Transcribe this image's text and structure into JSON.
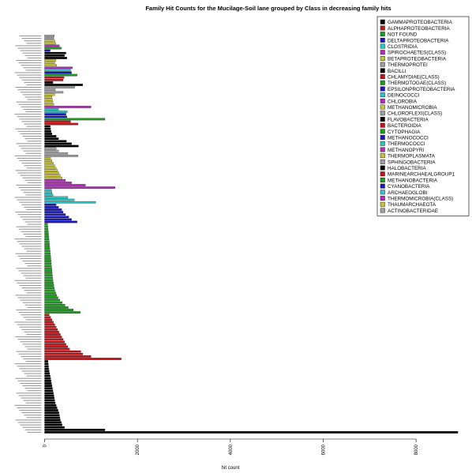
{
  "chart_data": {
    "type": "bar",
    "orientation": "horizontal",
    "title": "Family Hit Counts for the Mucilage-Soil lane grouped by Class in decreasing family hits",
    "xlabel": "hit count",
    "ylabel": "",
    "xlim": [
      0,
      9000
    ],
    "xticks": [
      0,
      2000,
      4000,
      6000,
      8000
    ],
    "legend_position": "top-right",
    "legend": [
      {
        "name": "GAMMAPROTEOBACTERIA",
        "color": "#000000"
      },
      {
        "name": "ALPHAPROTEOBACTERIA",
        "color": "#c0151b"
      },
      {
        "name": "NOT FOUND",
        "color": "#1e9a22"
      },
      {
        "name": "DELTAPROTEOBACTERIA",
        "color": "#1a18b8"
      },
      {
        "name": "CLOSTRIDIA",
        "color": "#2bc3c3"
      },
      {
        "name": "SPIROCHAETES(CLASS)",
        "color": "#b12fb8"
      },
      {
        "name": "BETAPROTEOBACTERIA",
        "color": "#c8c23b"
      },
      {
        "name": "THERMOPROTEI",
        "color": "#9e9e9e"
      },
      {
        "name": "BACILLI",
        "color": "#000000"
      },
      {
        "name": "CHLAMYDIAE(CLASS)",
        "color": "#c0151b"
      },
      {
        "name": "THERMOTOGAE(CLASS)",
        "color": "#1e9a22"
      },
      {
        "name": "EPSILONPROTEOBACTERIA",
        "color": "#1a18b8"
      },
      {
        "name": "DEINOCOCCI",
        "color": "#2bc3c3"
      },
      {
        "name": "CHLOROBIA",
        "color": "#b12fb8"
      },
      {
        "name": "METHANOMICROBIA",
        "color": "#c8c23b"
      },
      {
        "name": "CHLOROFLEXI(CLASS)",
        "color": "#9e9e9e"
      },
      {
        "name": "FLAVOBACTERIA",
        "color": "#000000"
      },
      {
        "name": "BACTEROIDIA",
        "color": "#c0151b"
      },
      {
        "name": "CYTOPHAGIA",
        "color": "#1e9a22"
      },
      {
        "name": "METHANOCOCCI",
        "color": "#1a18b8"
      },
      {
        "name": "THERMOCOCCI",
        "color": "#2bc3c3"
      },
      {
        "name": "METHANOPYRI",
        "color": "#b12fb8"
      },
      {
        "name": "THERMOPLASMATA",
        "color": "#c8c23b"
      },
      {
        "name": "SPHINGOBACTERIA",
        "color": "#9e9e9e"
      },
      {
        "name": "HALOBACTERIA",
        "color": "#000000"
      },
      {
        "name": "MARINEARCHAEALGROUP1",
        "color": "#c0151b"
      },
      {
        "name": "METHANOBACTERIA",
        "color": "#1e9a22"
      },
      {
        "name": "CYANOBACTERIA",
        "color": "#1a18b8"
      },
      {
        "name": "ARCHAEOGLOBI",
        "color": "#2bc3c3"
      },
      {
        "name": "THERMOMICROBIA(CLASS)",
        "color": "#b12fb8"
      },
      {
        "name": "THAUMARCHAEOTA",
        "color": "#c8c23b"
      },
      {
        "name": "ACTINOBACTERIDAE",
        "color": "#9e9e9e"
      }
    ],
    "bars": [
      {
        "value": 8900,
        "color": "#000000"
      },
      {
        "value": 1300,
        "color": "#000000"
      },
      {
        "value": 430,
        "color": "#000000"
      },
      {
        "value": 380,
        "color": "#000000"
      },
      {
        "value": 360,
        "color": "#000000"
      },
      {
        "value": 340,
        "color": "#000000"
      },
      {
        "value": 330,
        "color": "#000000"
      },
      {
        "value": 320,
        "color": "#000000"
      },
      {
        "value": 310,
        "color": "#000000"
      },
      {
        "value": 290,
        "color": "#000000"
      },
      {
        "value": 270,
        "color": "#000000"
      },
      {
        "value": 250,
        "color": "#000000"
      },
      {
        "value": 230,
        "color": "#000000"
      },
      {
        "value": 220,
        "color": "#000000"
      },
      {
        "value": 210,
        "color": "#000000"
      },
      {
        "value": 200,
        "color": "#000000"
      },
      {
        "value": 190,
        "color": "#000000"
      },
      {
        "value": 180,
        "color": "#000000"
      },
      {
        "value": 170,
        "color": "#000000"
      },
      {
        "value": 160,
        "color": "#000000"
      },
      {
        "value": 150,
        "color": "#000000"
      },
      {
        "value": 140,
        "color": "#000000"
      },
      {
        "value": 130,
        "color": "#000000"
      },
      {
        "value": 120,
        "color": "#000000"
      },
      {
        "value": 110,
        "color": "#000000"
      },
      {
        "value": 100,
        "color": "#000000"
      },
      {
        "value": 90,
        "color": "#000000"
      },
      {
        "value": 85,
        "color": "#000000"
      },
      {
        "value": 80,
        "color": "#000000"
      },
      {
        "value": 75,
        "color": "#000000"
      },
      {
        "value": 1650,
        "color": "#c0151b"
      },
      {
        "value": 1000,
        "color": "#c0151b"
      },
      {
        "value": 820,
        "color": "#c0151b"
      },
      {
        "value": 780,
        "color": "#c0151b"
      },
      {
        "value": 540,
        "color": "#c0151b"
      },
      {
        "value": 500,
        "color": "#c0151b"
      },
      {
        "value": 460,
        "color": "#c0151b"
      },
      {
        "value": 430,
        "color": "#c0151b"
      },
      {
        "value": 400,
        "color": "#c0151b"
      },
      {
        "value": 370,
        "color": "#c0151b"
      },
      {
        "value": 340,
        "color": "#c0151b"
      },
      {
        "value": 310,
        "color": "#c0151b"
      },
      {
        "value": 280,
        "color": "#c0151b"
      },
      {
        "value": 250,
        "color": "#c0151b"
      },
      {
        "value": 220,
        "color": "#c0151b"
      },
      {
        "value": 190,
        "color": "#c0151b"
      },
      {
        "value": 160,
        "color": "#c0151b"
      },
      {
        "value": 130,
        "color": "#c0151b"
      },
      {
        "value": 100,
        "color": "#c0151b"
      },
      {
        "value": 770,
        "color": "#1e9a22"
      },
      {
        "value": 620,
        "color": "#1e9a22"
      },
      {
        "value": 510,
        "color": "#1e9a22"
      },
      {
        "value": 440,
        "color": "#1e9a22"
      },
      {
        "value": 380,
        "color": "#1e9a22"
      },
      {
        "value": 330,
        "color": "#1e9a22"
      },
      {
        "value": 290,
        "color": "#1e9a22"
      },
      {
        "value": 260,
        "color": "#1e9a22"
      },
      {
        "value": 240,
        "color": "#1e9a22"
      },
      {
        "value": 220,
        "color": "#1e9a22"
      },
      {
        "value": 210,
        "color": "#1e9a22"
      },
      {
        "value": 200,
        "color": "#1e9a22"
      },
      {
        "value": 190,
        "color": "#1e9a22"
      },
      {
        "value": 180,
        "color": "#1e9a22"
      },
      {
        "value": 175,
        "color": "#1e9a22"
      },
      {
        "value": 170,
        "color": "#1e9a22"
      },
      {
        "value": 165,
        "color": "#1e9a22"
      },
      {
        "value": 160,
        "color": "#1e9a22"
      },
      {
        "value": 155,
        "color": "#1e9a22"
      },
      {
        "value": 150,
        "color": "#1e9a22"
      },
      {
        "value": 145,
        "color": "#1e9a22"
      },
      {
        "value": 140,
        "color": "#1e9a22"
      },
      {
        "value": 135,
        "color": "#1e9a22"
      },
      {
        "value": 130,
        "color": "#1e9a22"
      },
      {
        "value": 125,
        "color": "#1e9a22"
      },
      {
        "value": 120,
        "color": "#1e9a22"
      },
      {
        "value": 115,
        "color": "#1e9a22"
      },
      {
        "value": 110,
        "color": "#1e9a22"
      },
      {
        "value": 105,
        "color": "#1e9a22"
      },
      {
        "value": 100,
        "color": "#1e9a22"
      },
      {
        "value": 95,
        "color": "#1e9a22"
      },
      {
        "value": 90,
        "color": "#1e9a22"
      },
      {
        "value": 85,
        "color": "#1e9a22"
      },
      {
        "value": 80,
        "color": "#1e9a22"
      },
      {
        "value": 75,
        "color": "#1e9a22"
      },
      {
        "value": 70,
        "color": "#1e9a22"
      },
      {
        "value": 65,
        "color": "#1e9a22"
      },
      {
        "value": 700,
        "color": "#1a18b8"
      },
      {
        "value": 580,
        "color": "#1a18b8"
      },
      {
        "value": 520,
        "color": "#1a18b8"
      },
      {
        "value": 450,
        "color": "#1a18b8"
      },
      {
        "value": 400,
        "color": "#1a18b8"
      },
      {
        "value": 370,
        "color": "#1a18b8"
      },
      {
        "value": 300,
        "color": "#1a18b8"
      },
      {
        "value": 250,
        "color": "#1a18b8"
      },
      {
        "value": 1100,
        "color": "#2bc3c3"
      },
      {
        "value": 640,
        "color": "#2bc3c3"
      },
      {
        "value": 500,
        "color": "#2bc3c3"
      },
      {
        "value": 180,
        "color": "#2bc3c3"
      },
      {
        "value": 160,
        "color": "#2bc3c3"
      },
      {
        "value": 150,
        "color": "#2bc3c3"
      },
      {
        "value": 1520,
        "color": "#b12fb8"
      },
      {
        "value": 880,
        "color": "#b12fb8"
      },
      {
        "value": 580,
        "color": "#b12fb8"
      },
      {
        "value": 450,
        "color": "#b12fb8"
      },
      {
        "value": 380,
        "color": "#c8c23b"
      },
      {
        "value": 340,
        "color": "#c8c23b"
      },
      {
        "value": 310,
        "color": "#c8c23b"
      },
      {
        "value": 280,
        "color": "#c8c23b"
      },
      {
        "value": 250,
        "color": "#c8c23b"
      },
      {
        "value": 220,
        "color": "#c8c23b"
      },
      {
        "value": 190,
        "color": "#c8c23b"
      },
      {
        "value": 160,
        "color": "#c8c23b"
      },
      {
        "value": 130,
        "color": "#c8c23b"
      },
      {
        "value": 720,
        "color": "#9e9e9e"
      },
      {
        "value": 500,
        "color": "#9e9e9e"
      },
      {
        "value": 300,
        "color": "#9e9e9e"
      },
      {
        "value": 250,
        "color": "#9e9e9e"
      },
      {
        "value": 730,
        "color": "#000000"
      },
      {
        "value": 580,
        "color": "#000000"
      },
      {
        "value": 470,
        "color": "#000000"
      },
      {
        "value": 300,
        "color": "#000000"
      },
      {
        "value": 250,
        "color": "#000000"
      },
      {
        "value": 160,
        "color": "#000000"
      },
      {
        "value": 140,
        "color": "#000000"
      },
      {
        "value": 130,
        "color": "#000000"
      },
      {
        "value": 120,
        "color": "#000000"
      },
      {
        "value": 720,
        "color": "#c0151b"
      },
      {
        "value": 560,
        "color": "#c0151b"
      },
      {
        "value": 1300,
        "color": "#1e9a22"
      },
      {
        "value": 480,
        "color": "#1a18b8"
      },
      {
        "value": 460,
        "color": "#1a18b8"
      },
      {
        "value": 490,
        "color": "#2bc3c3"
      },
      {
        "value": 300,
        "color": "#2bc3c3"
      },
      {
        "value": 1000,
        "color": "#b12fb8"
      },
      {
        "value": 200,
        "color": "#c8c23b"
      },
      {
        "value": 180,
        "color": "#c8c23b"
      },
      {
        "value": 170,
        "color": "#c8c23b"
      },
      {
        "value": 160,
        "color": "#c8c23b"
      },
      {
        "value": 220,
        "color": "#c8c23b"
      },
      {
        "value": 400,
        "color": "#9e9e9e"
      },
      {
        "value": 230,
        "color": "#9e9e9e"
      },
      {
        "value": 650,
        "color": "#9e9e9e"
      },
      {
        "value": 820,
        "color": "#000000"
      },
      {
        "value": 180,
        "color": "#000000"
      },
      {
        "value": 400,
        "color": "#c0151b"
      },
      {
        "value": 420,
        "color": "#c0151b"
      },
      {
        "value": 700,
        "color": "#1e9a22"
      },
      {
        "value": 580,
        "color": "#1a18b8"
      },
      {
        "value": 560,
        "color": "#2bc3c3"
      },
      {
        "value": 600,
        "color": "#b12fb8"
      },
      {
        "value": 260,
        "color": "#c8c23b"
      },
      {
        "value": 220,
        "color": "#c8c23b"
      },
      {
        "value": 240,
        "color": "#c8c23b"
      },
      {
        "value": 480,
        "color": "#000000"
      },
      {
        "value": 430,
        "color": "#000000"
      },
      {
        "value": 460,
        "color": "#000000"
      },
      {
        "value": 120,
        "color": "#1a18b8"
      },
      {
        "value": 360,
        "color": "#1e9a22"
      },
      {
        "value": 320,
        "color": "#b12fb8"
      },
      {
        "value": 240,
        "color": "#c8c23b"
      },
      {
        "value": 220,
        "color": "#c8c23b"
      },
      {
        "value": 200,
        "color": "#9e9e9e"
      },
      {
        "value": 210,
        "color": "#9e9e9e"
      }
    ]
  }
}
